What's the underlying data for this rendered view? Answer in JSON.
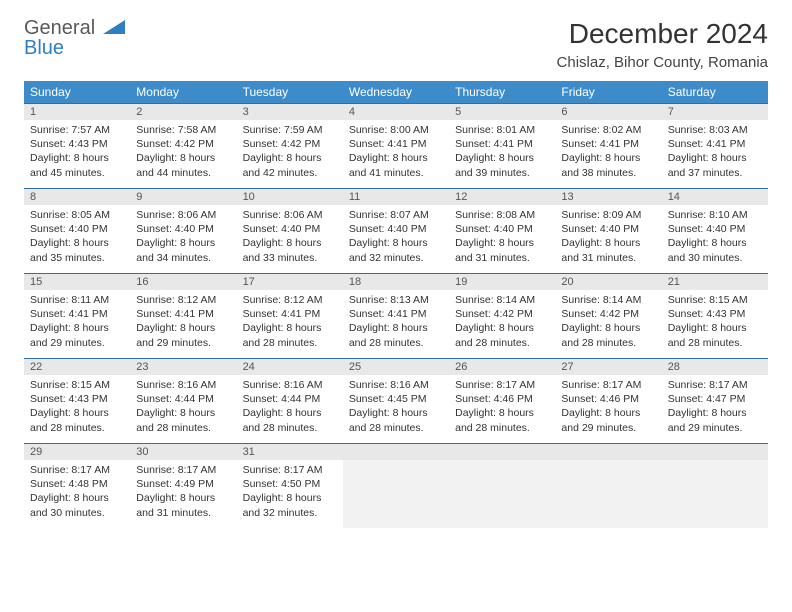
{
  "brand": {
    "word1": "General",
    "word2": "Blue"
  },
  "title": "December 2024",
  "location": "Chislaz, Bihor County, Romania",
  "colors": {
    "header_bg": "#3d8bc8",
    "header_text": "#ffffff",
    "rule": "#2f6fa8",
    "daynum_bg": "#e8e8e8",
    "logo_gray": "#5a5a5a",
    "logo_blue": "#2f7fc1"
  },
  "dow": [
    "Sunday",
    "Monday",
    "Tuesday",
    "Wednesday",
    "Thursday",
    "Friday",
    "Saturday"
  ],
  "weeks": [
    [
      {
        "n": "1",
        "sr": "7:57 AM",
        "ss": "4:43 PM",
        "dl": "8 hours and 45 minutes."
      },
      {
        "n": "2",
        "sr": "7:58 AM",
        "ss": "4:42 PM",
        "dl": "8 hours and 44 minutes."
      },
      {
        "n": "3",
        "sr": "7:59 AM",
        "ss": "4:42 PM",
        "dl": "8 hours and 42 minutes."
      },
      {
        "n": "4",
        "sr": "8:00 AM",
        "ss": "4:41 PM",
        "dl": "8 hours and 41 minutes."
      },
      {
        "n": "5",
        "sr": "8:01 AM",
        "ss": "4:41 PM",
        "dl": "8 hours and 39 minutes."
      },
      {
        "n": "6",
        "sr": "8:02 AM",
        "ss": "4:41 PM",
        "dl": "8 hours and 38 minutes."
      },
      {
        "n": "7",
        "sr": "8:03 AM",
        "ss": "4:41 PM",
        "dl": "8 hours and 37 minutes."
      }
    ],
    [
      {
        "n": "8",
        "sr": "8:05 AM",
        "ss": "4:40 PM",
        "dl": "8 hours and 35 minutes."
      },
      {
        "n": "9",
        "sr": "8:06 AM",
        "ss": "4:40 PM",
        "dl": "8 hours and 34 minutes."
      },
      {
        "n": "10",
        "sr": "8:06 AM",
        "ss": "4:40 PM",
        "dl": "8 hours and 33 minutes."
      },
      {
        "n": "11",
        "sr": "8:07 AM",
        "ss": "4:40 PM",
        "dl": "8 hours and 32 minutes."
      },
      {
        "n": "12",
        "sr": "8:08 AM",
        "ss": "4:40 PM",
        "dl": "8 hours and 31 minutes."
      },
      {
        "n": "13",
        "sr": "8:09 AM",
        "ss": "4:40 PM",
        "dl": "8 hours and 31 minutes."
      },
      {
        "n": "14",
        "sr": "8:10 AM",
        "ss": "4:40 PM",
        "dl": "8 hours and 30 minutes."
      }
    ],
    [
      {
        "n": "15",
        "sr": "8:11 AM",
        "ss": "4:41 PM",
        "dl": "8 hours and 29 minutes."
      },
      {
        "n": "16",
        "sr": "8:12 AM",
        "ss": "4:41 PM",
        "dl": "8 hours and 29 minutes."
      },
      {
        "n": "17",
        "sr": "8:12 AM",
        "ss": "4:41 PM",
        "dl": "8 hours and 28 minutes."
      },
      {
        "n": "18",
        "sr": "8:13 AM",
        "ss": "4:41 PM",
        "dl": "8 hours and 28 minutes."
      },
      {
        "n": "19",
        "sr": "8:14 AM",
        "ss": "4:42 PM",
        "dl": "8 hours and 28 minutes."
      },
      {
        "n": "20",
        "sr": "8:14 AM",
        "ss": "4:42 PM",
        "dl": "8 hours and 28 minutes."
      },
      {
        "n": "21",
        "sr": "8:15 AM",
        "ss": "4:43 PM",
        "dl": "8 hours and 28 minutes."
      }
    ],
    [
      {
        "n": "22",
        "sr": "8:15 AM",
        "ss": "4:43 PM",
        "dl": "8 hours and 28 minutes."
      },
      {
        "n": "23",
        "sr": "8:16 AM",
        "ss": "4:44 PM",
        "dl": "8 hours and 28 minutes."
      },
      {
        "n": "24",
        "sr": "8:16 AM",
        "ss": "4:44 PM",
        "dl": "8 hours and 28 minutes."
      },
      {
        "n": "25",
        "sr": "8:16 AM",
        "ss": "4:45 PM",
        "dl": "8 hours and 28 minutes."
      },
      {
        "n": "26",
        "sr": "8:17 AM",
        "ss": "4:46 PM",
        "dl": "8 hours and 28 minutes."
      },
      {
        "n": "27",
        "sr": "8:17 AM",
        "ss": "4:46 PM",
        "dl": "8 hours and 29 minutes."
      },
      {
        "n": "28",
        "sr": "8:17 AM",
        "ss": "4:47 PM",
        "dl": "8 hours and 29 minutes."
      }
    ],
    [
      {
        "n": "29",
        "sr": "8:17 AM",
        "ss": "4:48 PM",
        "dl": "8 hours and 30 minutes."
      },
      {
        "n": "30",
        "sr": "8:17 AM",
        "ss": "4:49 PM",
        "dl": "8 hours and 31 minutes."
      },
      {
        "n": "31",
        "sr": "8:17 AM",
        "ss": "4:50 PM",
        "dl": "8 hours and 32 minutes."
      },
      null,
      null,
      null,
      null
    ]
  ],
  "labels": {
    "sunrise": "Sunrise: ",
    "sunset": "Sunset: ",
    "daylight": "Daylight: "
  }
}
